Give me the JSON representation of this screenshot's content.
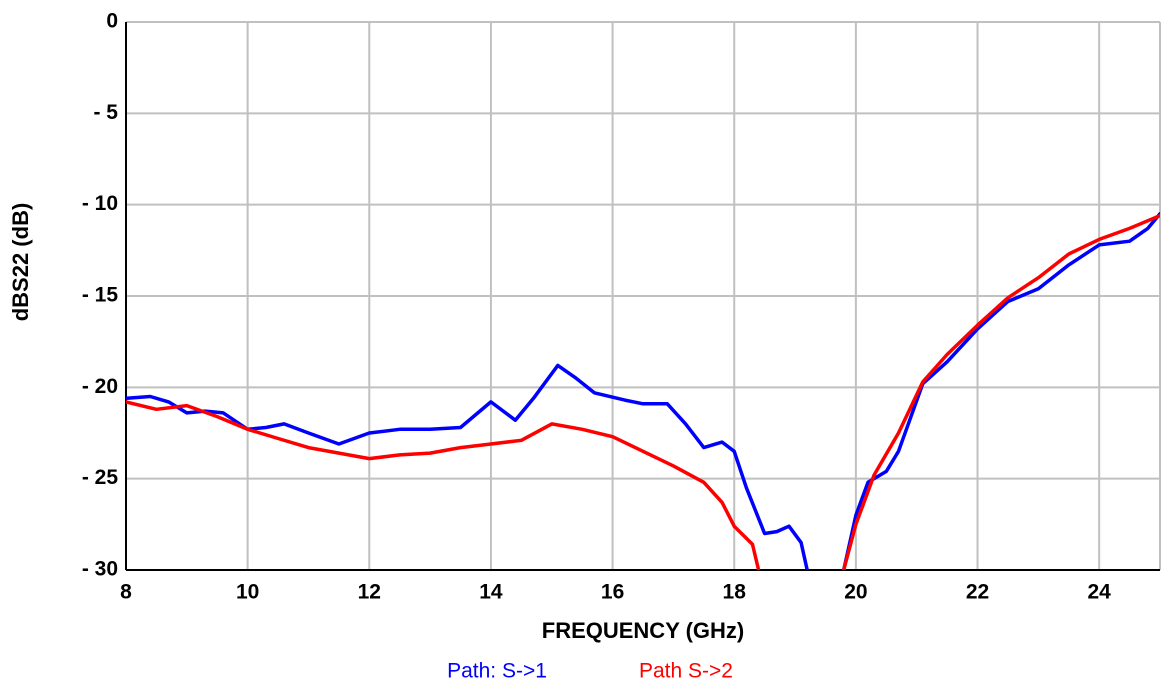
{
  "chart_data": {
    "type": "line",
    "xlabel": "FREQUENCY (GHz)",
    "ylabel": "dBS22 (dB)",
    "xlim": [
      8,
      25
    ],
    "ylim": [
      -30,
      0
    ],
    "xticks": [
      8,
      10,
      12,
      14,
      16,
      18,
      20,
      22,
      24
    ],
    "yticks": [
      {
        "value": -30,
        "label": "- 30"
      },
      {
        "value": -25,
        "label": "- 25"
      },
      {
        "value": -20,
        "label": "- 20"
      },
      {
        "value": -15,
        "label": "- 15"
      },
      {
        "value": -10,
        "label": "- 10"
      },
      {
        "value": -5,
        "label": "- 5"
      },
      0
    ],
    "grid": true,
    "series": [
      {
        "name": "Path: S->1",
        "color": "#0000ff",
        "x": [
          8.0,
          8.4,
          8.7,
          9.0,
          9.3,
          9.6,
          10.0,
          10.3,
          10.6,
          11.0,
          11.5,
          12.0,
          12.5,
          13.0,
          13.5,
          14.0,
          14.4,
          14.7,
          15.1,
          15.4,
          15.7,
          16.2,
          16.5,
          16.9,
          17.2,
          17.5,
          17.8,
          18.0,
          18.2,
          18.5,
          18.7,
          18.9,
          19.1,
          19.2,
          19.5,
          19.8,
          20.0,
          20.2,
          20.5,
          20.7,
          21.1,
          21.5,
          22.0,
          22.5,
          23.0,
          23.5,
          24.0,
          24.5,
          24.8,
          25.0
        ],
        "values": [
          -20.6,
          -20.5,
          -20.8,
          -21.4,
          -21.3,
          -21.4,
          -22.3,
          -22.2,
          -22.0,
          -22.5,
          -23.1,
          -22.5,
          -22.3,
          -22.3,
          -22.2,
          -20.8,
          -21.8,
          -20.6,
          -18.8,
          -19.5,
          -20.3,
          -20.7,
          -20.9,
          -20.9,
          -22.0,
          -23.3,
          -23.0,
          -23.5,
          -25.5,
          -28.0,
          -27.9,
          -27.6,
          -28.5,
          -30,
          null,
          -30,
          -27,
          -25.2,
          -24.6,
          -23.5,
          -19.8,
          -18.6,
          -16.8,
          -15.3,
          -14.6,
          -13.3,
          -12.2,
          -12.0,
          -11.3,
          -10.5
        ]
      },
      {
        "name": "Path S->2",
        "color": "#ff0000",
        "x": [
          8.0,
          8.5,
          9.0,
          9.5,
          10.0,
          10.5,
          11.0,
          11.5,
          12.0,
          12.5,
          13.0,
          13.5,
          14.0,
          14.5,
          15.0,
          15.5,
          16.0,
          16.5,
          17.0,
          17.5,
          17.8,
          18.0,
          18.3,
          18.4,
          19.1,
          19.8,
          20.0,
          20.3,
          20.7,
          21.1,
          21.5,
          22.0,
          22.5,
          23.0,
          23.5,
          24.0,
          24.5,
          25.0
        ],
        "values": [
          -20.8,
          -21.2,
          -21.0,
          -21.6,
          -22.3,
          -22.8,
          -23.3,
          -23.6,
          -23.9,
          -23.7,
          -23.6,
          -23.3,
          -23.1,
          -22.9,
          -22.0,
          -22.3,
          -22.7,
          -23.5,
          -24.3,
          -25.2,
          -26.3,
          -27.6,
          -28.6,
          -30,
          null,
          -30,
          -27.5,
          -24.8,
          -22.5,
          -19.7,
          -18.2,
          -16.6,
          -15.1,
          -14.0,
          -12.7,
          -11.9,
          -11.3,
          -10.6
        ]
      }
    ]
  }
}
